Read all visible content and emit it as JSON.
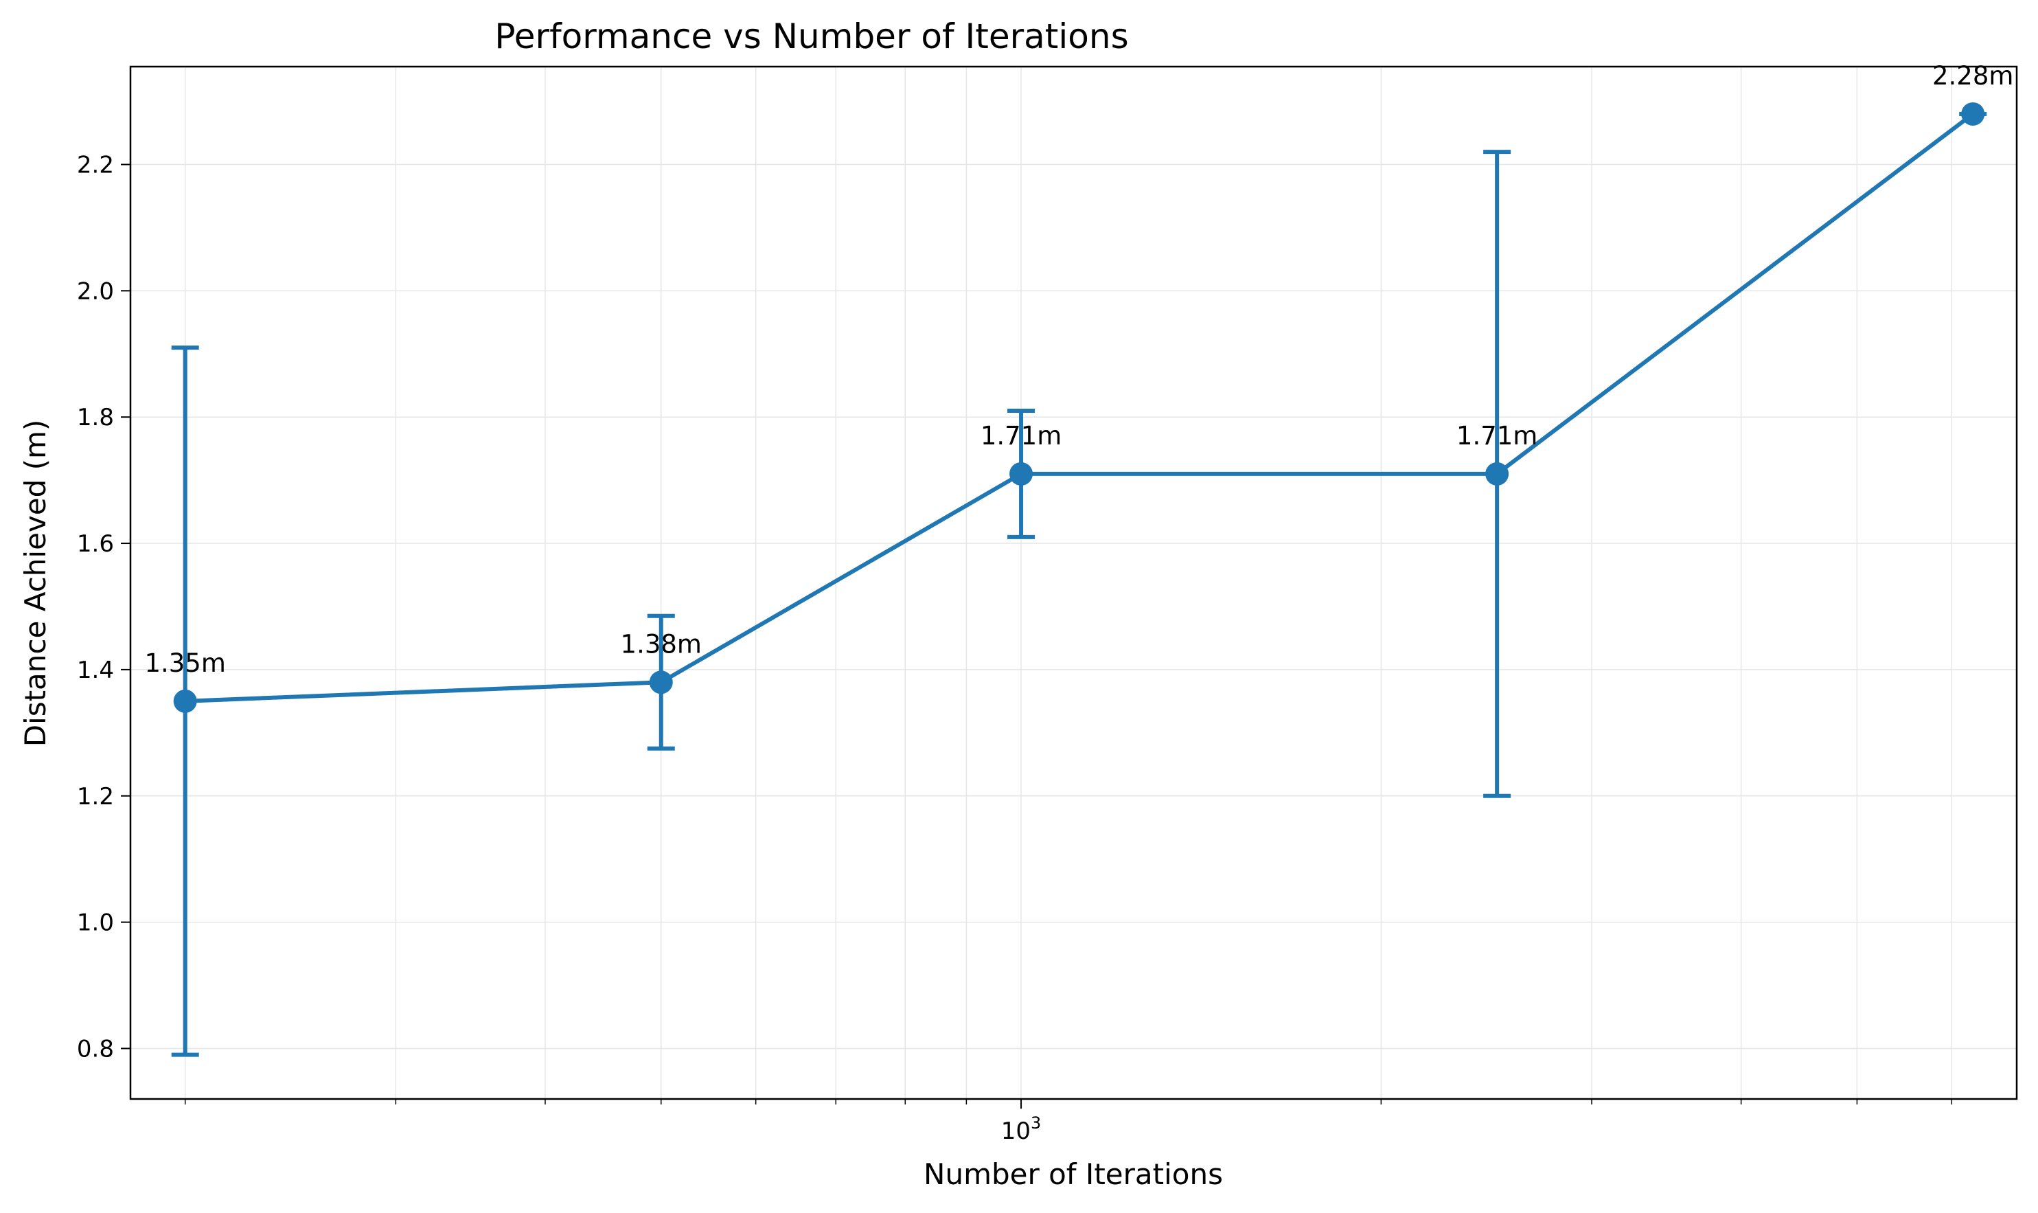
{
  "chart_data": {
    "type": "line",
    "title": "Performance vs Number of Iterations",
    "xlabel": "Number of Iterations",
    "ylabel": "Distance Achieved (m)",
    "xscale": "log",
    "xlim": [
      180,
      6800
    ],
    "ylim": [
      0.72,
      2.355
    ],
    "x_major_ticks": [
      {
        "value": 1000,
        "base": "10",
        "exponent": "3"
      }
    ],
    "x_minor_ticks": [
      200,
      300,
      400,
      500,
      600,
      700,
      800,
      900,
      2000,
      3000,
      4000,
      5000,
      6000
    ],
    "y_ticks": [
      {
        "value": 0.8,
        "label": "0.8"
      },
      {
        "value": 1.0,
        "label": "1.0"
      },
      {
        "value": 1.2,
        "label": "1.2"
      },
      {
        "value": 1.4,
        "label": "1.4"
      },
      {
        "value": 1.6,
        "label": "1.6"
      },
      {
        "value": 1.8,
        "label": "1.8"
      },
      {
        "value": 2.0,
        "label": "2.0"
      },
      {
        "value": 2.2,
        "label": "2.2"
      }
    ],
    "grid": true,
    "color": "#1f77b4",
    "points": [
      {
        "x": 200,
        "y": 1.35,
        "err": 0.56,
        "label": "1.35m"
      },
      {
        "x": 500,
        "y": 1.38,
        "err": 0.105,
        "label": "1.38m"
      },
      {
        "x": 1000,
        "y": 1.71,
        "err": 0.1,
        "label": "1.71m"
      },
      {
        "x": 2500,
        "y": 1.71,
        "err": 0.51,
        "label": "1.71m"
      },
      {
        "x": 6250,
        "y": 2.28,
        "err": 0.0,
        "label": "2.28m"
      }
    ]
  }
}
